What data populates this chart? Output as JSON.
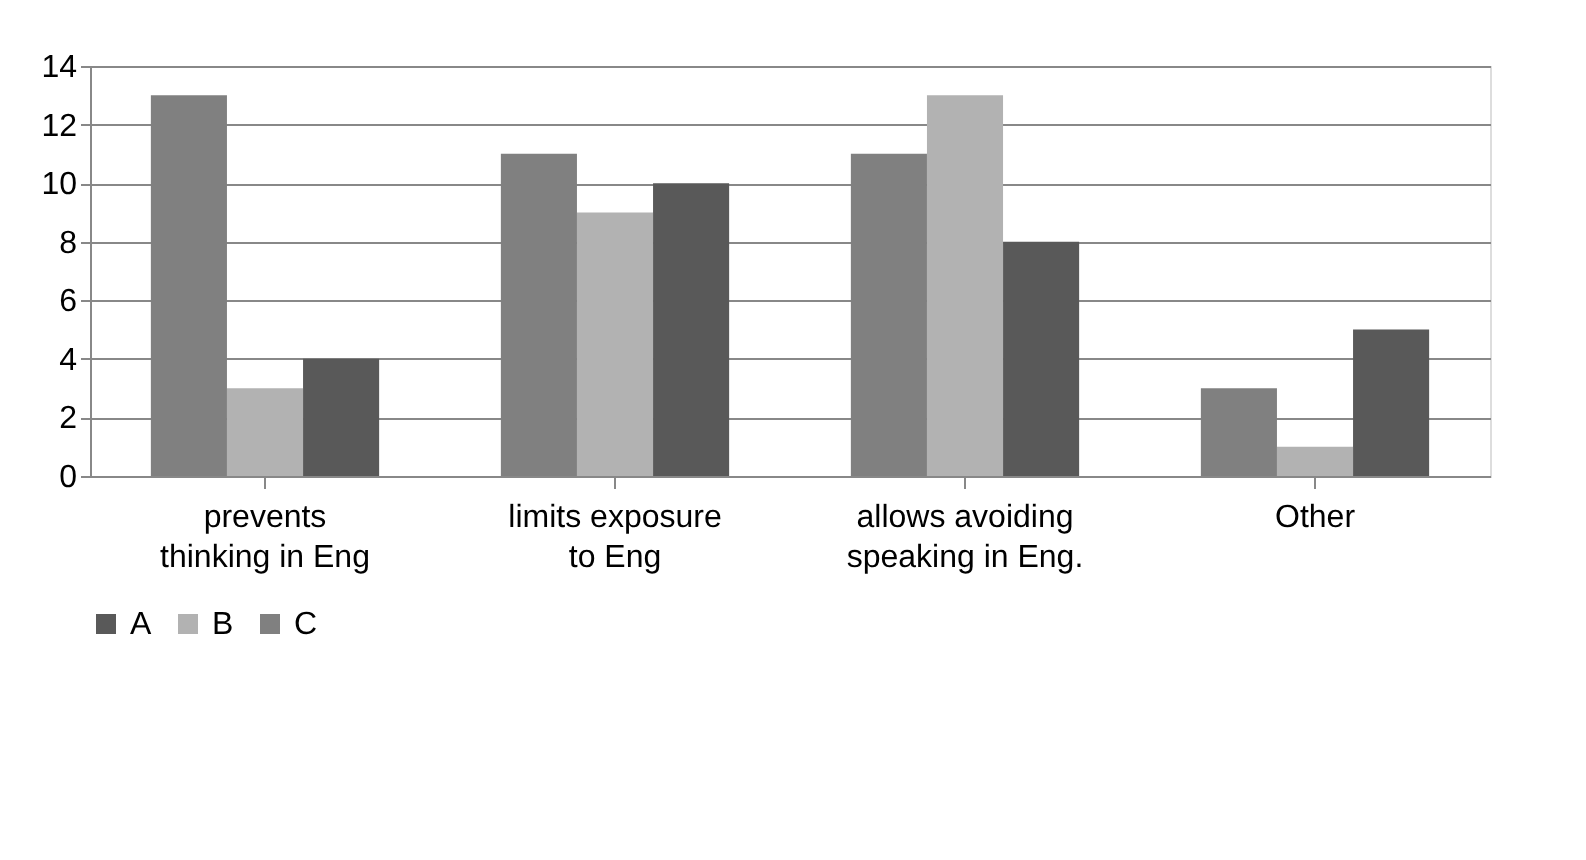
{
  "chart_data": {
    "type": "bar",
    "categories": [
      "prevents thinking in Eng",
      "limits exposure to Eng",
      "allows avoiding speaking in Eng.",
      "Other"
    ],
    "series": [
      {
        "name": "A",
        "color": "#595959",
        "values": [
          4,
          10,
          8,
          5
        ]
      },
      {
        "name": "B",
        "color": "#b2b2b2",
        "values": [
          3,
          9,
          13,
          1
        ]
      },
      {
        "name": "C",
        "color": "#808080",
        "values": [
          13,
          11,
          11,
          3
        ]
      }
    ],
    "ylim": [
      0,
      14
    ],
    "yticks": [
      0,
      2,
      4,
      6,
      8,
      10,
      12,
      14
    ],
    "grid": "y",
    "legend": "bottom"
  }
}
